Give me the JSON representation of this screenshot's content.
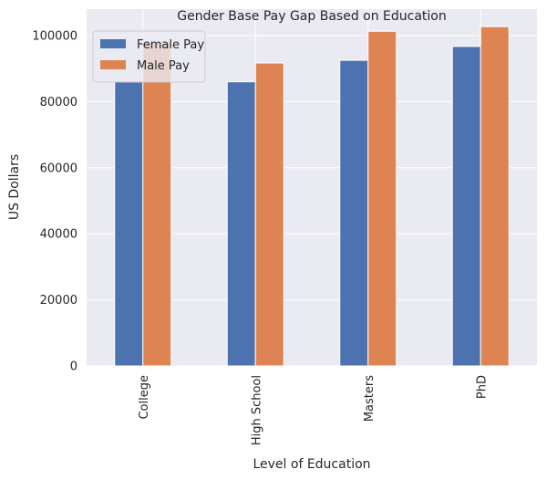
{
  "chart_data": {
    "type": "bar",
    "title": "Gender Base Pay Gap Based on Education",
    "xlabel": "Level of Education",
    "ylabel": "US Dollars",
    "categories": [
      "College",
      "High School",
      "Masters",
      "PhD"
    ],
    "series": [
      {
        "name": "Female Pay",
        "color": "#4C72B0",
        "values": [
          86300,
          86000,
          92500,
          96700
        ]
      },
      {
        "name": "Male Pay",
        "color": "#DD8452",
        "values": [
          98000,
          91700,
          101300,
          102700
        ]
      }
    ],
    "ylim": [
      0,
      108000
    ],
    "yticks": [
      "0",
      "20000",
      "40000",
      "60000",
      "80000",
      "100000"
    ],
    "grid": true,
    "legend": "top-left",
    "background": "#EAEAF2"
  }
}
